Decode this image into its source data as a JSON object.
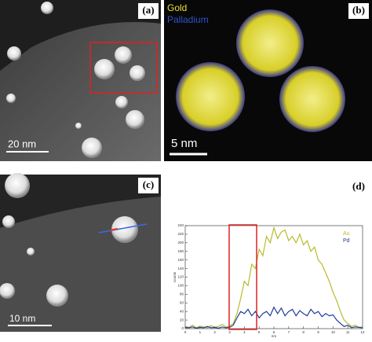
{
  "panels": {
    "a": {
      "label": "(a)",
      "scale_bar": "20 nm"
    },
    "b": {
      "label": "(b)",
      "legend": [
        "Gold",
        "Palladium"
      ],
      "scale_bar": "5 nm"
    },
    "c": {
      "label": "(c)",
      "scale_bar": "10 nm"
    },
    "d": {
      "label": "(d)"
    }
  },
  "chart_data": {
    "type": "line",
    "x_label": "nm",
    "y_label": "counts",
    "x": [
      0,
      0.25,
      0.5,
      0.75,
      1,
      1.25,
      1.5,
      1.75,
      2,
      2.25,
      2.5,
      2.75,
      3,
      3.25,
      3.5,
      3.75,
      4,
      4.25,
      4.5,
      4.75,
      5,
      5.25,
      5.5,
      5.75,
      6,
      6.25,
      6.5,
      6.75,
      7,
      7.25,
      7.5,
      7.75,
      8,
      8.25,
      8.5,
      8.75,
      9,
      9.25,
      9.5,
      9.75,
      10,
      10.25,
      10.5,
      10.75,
      11,
      11.25,
      11.5,
      11.75,
      12
    ],
    "series": [
      {
        "name": "Au",
        "color": "#b8bc2c",
        "values": [
          5,
          3,
          8,
          2,
          6,
          4,
          2,
          7,
          3,
          5,
          10,
          4,
          6,
          12,
          35,
          70,
          110,
          100,
          150,
          140,
          185,
          170,
          215,
          200,
          235,
          210,
          225,
          230,
          205,
          215,
          200,
          220,
          195,
          205,
          180,
          190,
          160,
          150,
          130,
          110,
          85,
          65,
          40,
          20,
          12,
          5,
          8,
          3,
          4
        ]
      },
      {
        "name": "Pd",
        "color": "#1f3c96",
        "values": [
          3,
          2,
          4,
          1,
          3,
          2,
          5,
          2,
          3,
          1,
          4,
          2,
          3,
          8,
          25,
          40,
          35,
          45,
          30,
          40,
          25,
          35,
          40,
          30,
          50,
          35,
          48,
          30,
          40,
          45,
          30,
          42,
          35,
          30,
          45,
          35,
          40,
          28,
          35,
          30,
          32,
          20,
          12,
          5,
          8,
          2,
          4,
          3,
          2
        ]
      }
    ],
    "xlim": [
      0,
      12
    ],
    "xticks": [
      0,
      1,
      2,
      3,
      4,
      5,
      6,
      7,
      8,
      9,
      10,
      11,
      12
    ],
    "ylim": [
      0,
      240
    ],
    "yticks": [
      0,
      20,
      40,
      60,
      80,
      100,
      120,
      140,
      160,
      180,
      200,
      220,
      240
    ]
  }
}
